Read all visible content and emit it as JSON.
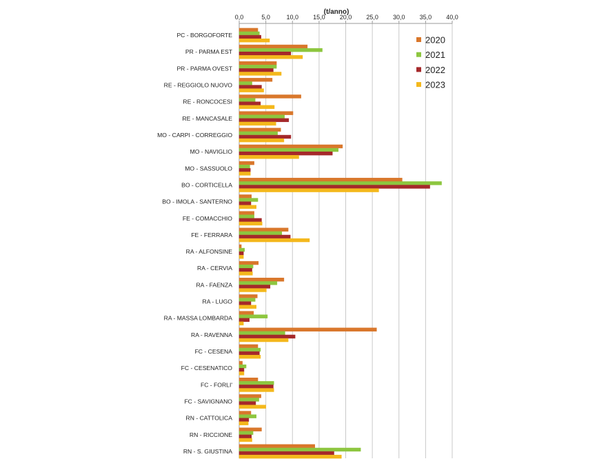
{
  "chart_data": {
    "type": "bar",
    "orientation": "horizontal",
    "unit_label": "(t/anno)",
    "xlim": [
      0,
      40
    ],
    "ticks": [
      "0,0",
      "5,0",
      "10,0",
      "15,0",
      "20,0",
      "25,0",
      "30,0",
      "35,0",
      "40,0"
    ],
    "grid": true,
    "legend_position": "top-right",
    "categories": [
      "PC - BORGOFORTE",
      "PR - PARMA EST",
      "PR - PARMA OVEST",
      "RE - REGGIOLO NUOVO",
      "RE - RONCOCESI",
      "RE - MANCASALE",
      "MO - CARPI - CORREGGIO",
      "MO - NAVIGLIO",
      "MO - SASSUOLO",
      "BO - CORTICELLA",
      "BO - IMOLA - SANTERNO",
      "FE - COMACCHIO",
      "FE - FERRARA",
      "RA - ALFONSINE",
      "RA - CERVIA",
      "RA - FAENZA",
      "RA - LUGO",
      "RA - MASSA LOMBARDA",
      "RA - RAVENNA",
      "FC - CESENA",
      "FC - CESENATICO",
      "FC - FORLI'",
      "FC - SAVIGNANO",
      "RN - CATTOLICA",
      "RN - RICCIONE",
      "RN - S. GIUSTINA"
    ],
    "series": [
      {
        "name": "2020",
        "color": "#d9772b",
        "values": [
          3.5,
          12.8,
          7.0,
          6.2,
          11.6,
          10.1,
          7.8,
          19.4,
          2.8,
          30.6,
          2.3,
          2.8,
          9.2,
          0.4,
          3.6,
          8.4,
          3.4,
          2.7,
          25.8,
          3.5,
          0.6,
          3.5,
          4.1,
          2.2,
          4.2,
          14.2
        ]
      },
      {
        "name": "2021",
        "color": "#8dc63f",
        "values": [
          3.8,
          15.6,
          7.0,
          2.4,
          3.0,
          8.5,
          7.2,
          18.6,
          2.0,
          38.0,
          3.5,
          2.8,
          8.0,
          1.0,
          2.6,
          7.1,
          3.0,
          5.3,
          8.6,
          4.0,
          1.3,
          6.5,
          3.7,
          3.2,
          2.6,
          22.8
        ]
      },
      {
        "name": "2022",
        "color": "#a5282a",
        "values": [
          4.1,
          9.7,
          6.4,
          4.2,
          4.0,
          9.3,
          9.7,
          17.5,
          2.1,
          35.8,
          2.2,
          4.2,
          9.6,
          0.8,
          2.4,
          5.8,
          2.2,
          1.9,
          10.5,
          3.8,
          0.9,
          6.4,
          3.1,
          1.8,
          2.3,
          17.8
        ]
      },
      {
        "name": "2023",
        "color": "#f4b81c",
        "values": [
          5.7,
          11.9,
          7.9,
          4.6,
          6.6,
          6.9,
          8.4,
          11.2,
          2.1,
          26.2,
          3.2,
          4.3,
          13.2,
          0.8,
          2.5,
          5.1,
          3.2,
          0.8,
          9.2,
          4.0,
          0.9,
          6.5,
          5.0,
          1.7,
          2.4,
          19.2
        ]
      }
    ]
  }
}
